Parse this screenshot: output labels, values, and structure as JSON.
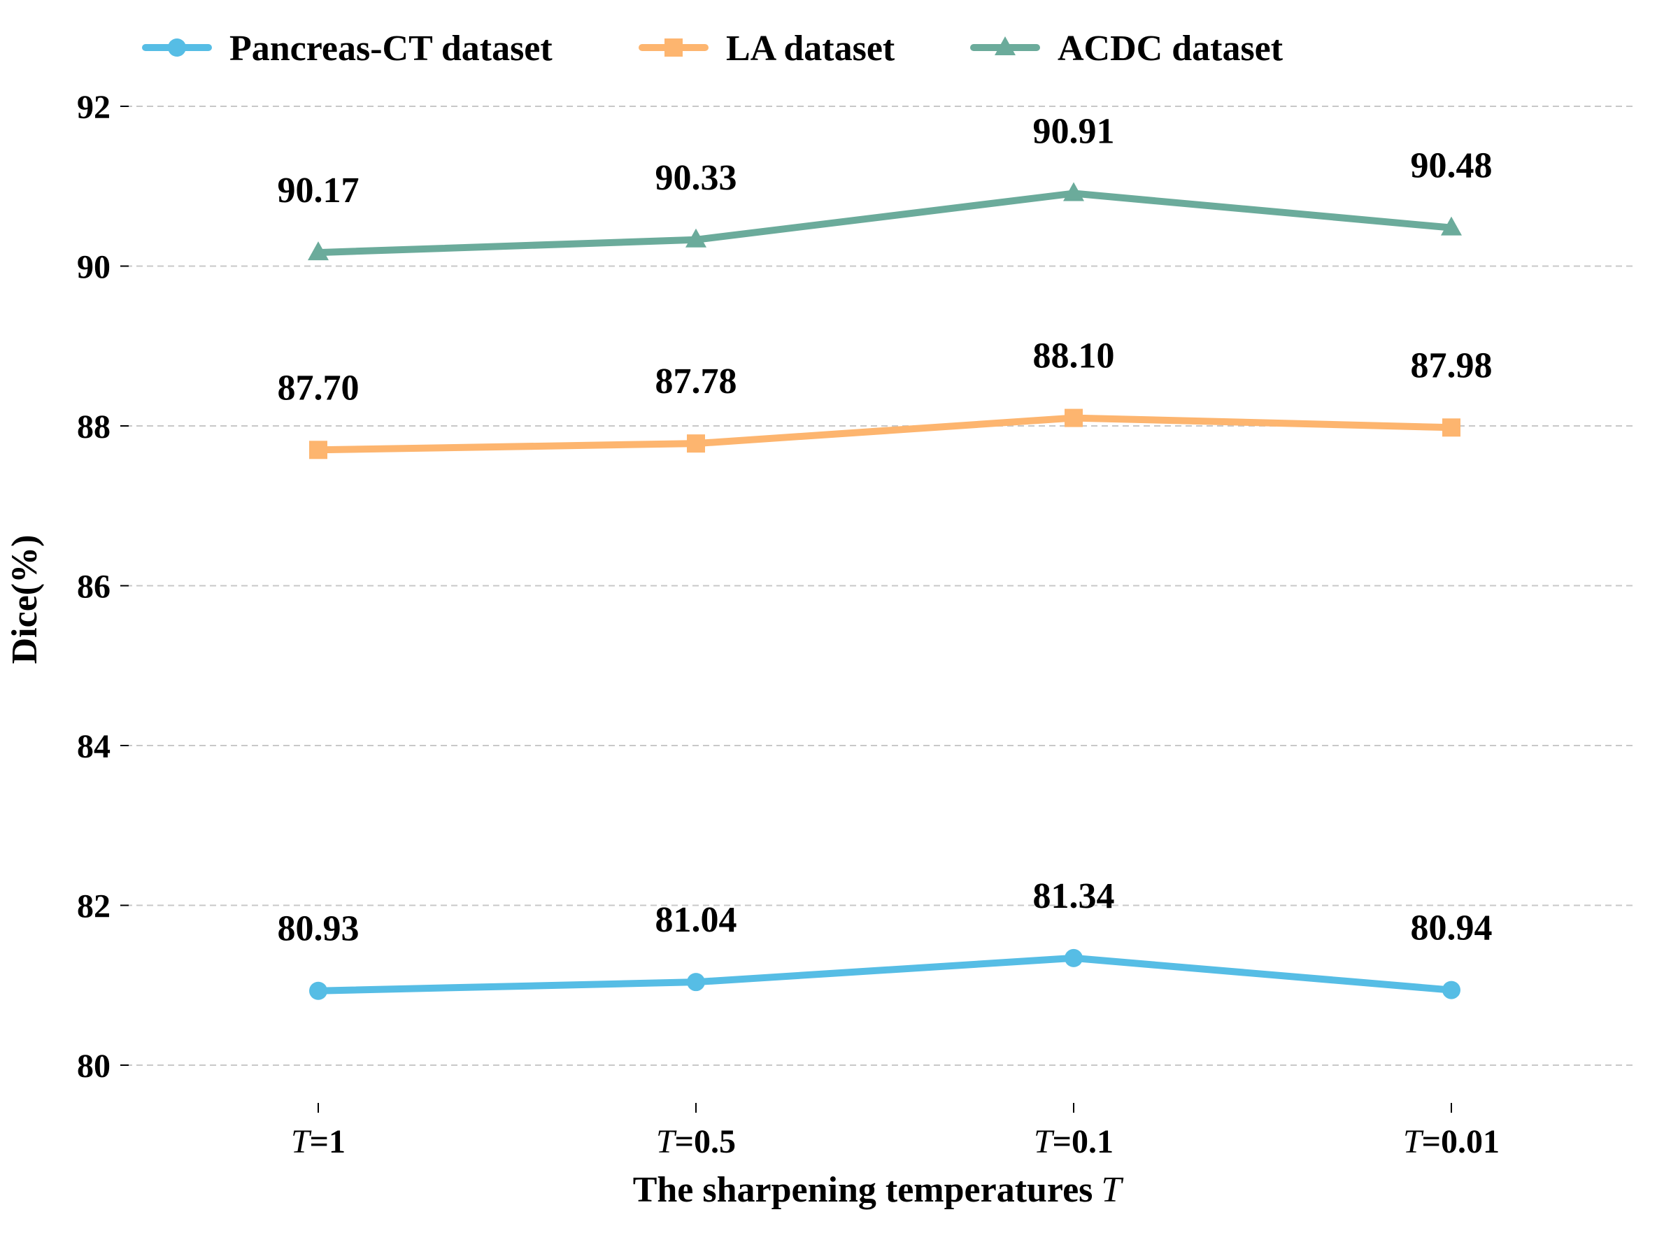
{
  "chart_data": {
    "type": "line",
    "title": "",
    "xlabel": "The sharpening temperatures",
    "xlabel_var": "T",
    "ylabel": "Dice(%)",
    "ylim": [
      79.6,
      92.4
    ],
    "yticks": [
      80,
      82,
      84,
      86,
      88,
      90,
      92
    ],
    "grid": "horizontal dashed",
    "legend_position": "top",
    "categories": [
      {
        "var": "T",
        "rest": "=1"
      },
      {
        "var": "T",
        "rest": "=0.5"
      },
      {
        "var": "T",
        "rest": "=0.1"
      },
      {
        "var": "T",
        "rest": "=0.01"
      }
    ],
    "series": [
      {
        "name": "Pancreas-CT dataset",
        "marker": "circle",
        "color": "#56BDE5",
        "values": [
          80.93,
          81.04,
          81.34,
          80.94
        ],
        "labels": [
          "80.93",
          "81.04",
          "81.34",
          "80.94"
        ]
      },
      {
        "name": "LA dataset",
        "marker": "square",
        "color": "#FDB56F",
        "values": [
          87.7,
          87.78,
          88.1,
          87.98
        ],
        "labels": [
          "87.70",
          "87.78",
          "88.10",
          "87.98"
        ]
      },
      {
        "name": "ACDC dataset",
        "marker": "triangle",
        "color": "#6BAB9B",
        "values": [
          90.17,
          90.33,
          90.91,
          90.48
        ],
        "labels": [
          "90.17",
          "90.33",
          "90.91",
          "90.48"
        ]
      }
    ]
  }
}
